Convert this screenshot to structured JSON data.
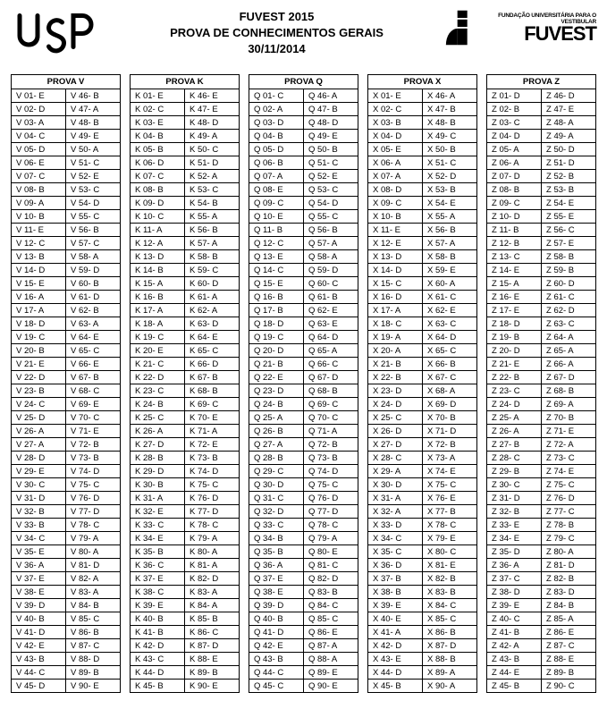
{
  "header": {
    "line1": "FUVEST 2015",
    "line2": "PROVA DE CONHECIMENTOS GERAIS",
    "line3": "30/11/2014",
    "fuvest_small": "FUNDAÇÃO UNIVERSITÁRIA PARA O VESTIBULAR",
    "fuvest_big": "FUVEST"
  },
  "letters": [
    "A",
    "B",
    "C",
    "D",
    "E"
  ],
  "provas": [
    {
      "title": "PROVA V",
      "ans": [
        "E",
        "D",
        "A",
        "C",
        "D",
        "E",
        "C",
        "B",
        "A",
        "B",
        "E",
        "C",
        "B",
        "D",
        "E",
        "A",
        "A",
        "D",
        "C",
        "B",
        "E",
        "D",
        "B",
        "C",
        "D",
        "A",
        "A",
        "D",
        "E",
        "C",
        "D",
        "B",
        "B",
        "C",
        "E",
        "A",
        "E",
        "E",
        "D",
        "B",
        "D",
        "E",
        "B",
        "C",
        "D",
        "B",
        "A",
        "B",
        "E",
        "A",
        "C",
        "E",
        "C",
        "D",
        "C",
        "B",
        "C",
        "A",
        "D",
        "B",
        "D",
        "B",
        "A",
        "E",
        "C",
        "E",
        "B",
        "C",
        "E",
        "C",
        "E",
        "B",
        "B",
        "D",
        "C",
        "D",
        "D",
        "C",
        "A",
        "A",
        "D",
        "A",
        "A",
        "B",
        "C",
        "B",
        "C",
        "D",
        "B",
        "E"
      ]
    },
    {
      "title": "PROVA K",
      "ans": [
        "E",
        "C",
        "E",
        "B",
        "B",
        "D",
        "C",
        "B",
        "D",
        "C",
        "A",
        "A",
        "D",
        "B",
        "A",
        "B",
        "A",
        "A",
        "C",
        "E",
        "C",
        "D",
        "C",
        "B",
        "C",
        "A",
        "D",
        "B",
        "D",
        "B",
        "A",
        "E",
        "C",
        "E",
        "B",
        "C",
        "E",
        "C",
        "E",
        "B",
        "B",
        "D",
        "C",
        "D",
        "B",
        "E",
        "E",
        "D",
        "A",
        "C",
        "D",
        "A",
        "C",
        "B",
        "A",
        "B",
        "A",
        "B",
        "C",
        "D",
        "A",
        "A",
        "D",
        "E",
        "C",
        "D",
        "B",
        "B",
        "C",
        "E",
        "A",
        "E",
        "B",
        "D",
        "C",
        "D",
        "D",
        "C",
        "A",
        "A",
        "A",
        "D",
        "A",
        "A",
        "B",
        "C",
        "D",
        "E",
        "B",
        "E"
      ]
    },
    {
      "title": "PROVA Q",
      "ans": [
        "C",
        "A",
        "D",
        "B",
        "D",
        "B",
        "A",
        "E",
        "C",
        "E",
        "B",
        "C",
        "E",
        "C",
        "E",
        "B",
        "B",
        "D",
        "C",
        "D",
        "B",
        "E",
        "D",
        "B",
        "A",
        "B",
        "A",
        "B",
        "C",
        "D",
        "C",
        "D",
        "C",
        "B",
        "B",
        "A",
        "E",
        "E",
        "D",
        "B",
        "D",
        "E",
        "B",
        "C",
        "C",
        "A",
        "B",
        "D",
        "E",
        "B",
        "C",
        "E",
        "C",
        "D",
        "C",
        "B",
        "A",
        "A",
        "D",
        "C",
        "B",
        "E",
        "E",
        "D",
        "A",
        "C",
        "D",
        "B",
        "C",
        "C",
        "A",
        "B",
        "B",
        "D",
        "C",
        "D",
        "D",
        "C",
        "A",
        "E",
        "C",
        "D",
        "B",
        "C",
        "C",
        "E",
        "A",
        "A",
        "E",
        "E"
      ]
    },
    {
      "title": "PROVA X",
      "ans": [
        "E",
        "C",
        "B",
        "D",
        "E",
        "A",
        "A",
        "D",
        "C",
        "B",
        "E",
        "E",
        "D",
        "D",
        "C",
        "D",
        "A",
        "C",
        "A",
        "A",
        "B",
        "B",
        "D",
        "D",
        "C",
        "D",
        "D",
        "C",
        "A",
        "D",
        "A",
        "A",
        "D",
        "C",
        "C",
        "D",
        "B",
        "B",
        "E",
        "E",
        "A",
        "D",
        "E",
        "D",
        "B",
        "A",
        "B",
        "B",
        "C",
        "B",
        "C",
        "D",
        "B",
        "E",
        "A",
        "B",
        "A",
        "B",
        "E",
        "A",
        "C",
        "E",
        "C",
        "D",
        "C",
        "B",
        "C",
        "A",
        "D",
        "B",
        "D",
        "B",
        "A",
        "E",
        "C",
        "E",
        "B",
        "C",
        "E",
        "C",
        "E",
        "B",
        "B",
        "C",
        "C",
        "B",
        "D",
        "B",
        "A",
        "A"
      ]
    },
    {
      "title": "PROVA Z",
      "ans": [
        "D",
        "B",
        "C",
        "D",
        "A",
        "A",
        "D",
        "B",
        "C",
        "D",
        "B",
        "B",
        "C",
        "E",
        "A",
        "E",
        "E",
        "D",
        "B",
        "D",
        "E",
        "B",
        "C",
        "D",
        "A",
        "A",
        "B",
        "C",
        "B",
        "C",
        "D",
        "B",
        "E",
        "E",
        "D",
        "A",
        "C",
        "D",
        "E",
        "C",
        "B",
        "A",
        "B",
        "E",
        "B",
        "D",
        "E",
        "A",
        "A",
        "D",
        "D",
        "B",
        "B",
        "E",
        "E",
        "C",
        "E",
        "B",
        "B",
        "D",
        "C",
        "D",
        "C",
        "A",
        "A",
        "A",
        "D",
        "B",
        "A",
        "B",
        "E",
        "A",
        "C",
        "E",
        "C",
        "D",
        "C",
        "B",
        "C",
        "A",
        "D",
        "B",
        "D",
        "B",
        "A",
        "E",
        "C",
        "E",
        "B",
        "C"
      ]
    }
  ]
}
